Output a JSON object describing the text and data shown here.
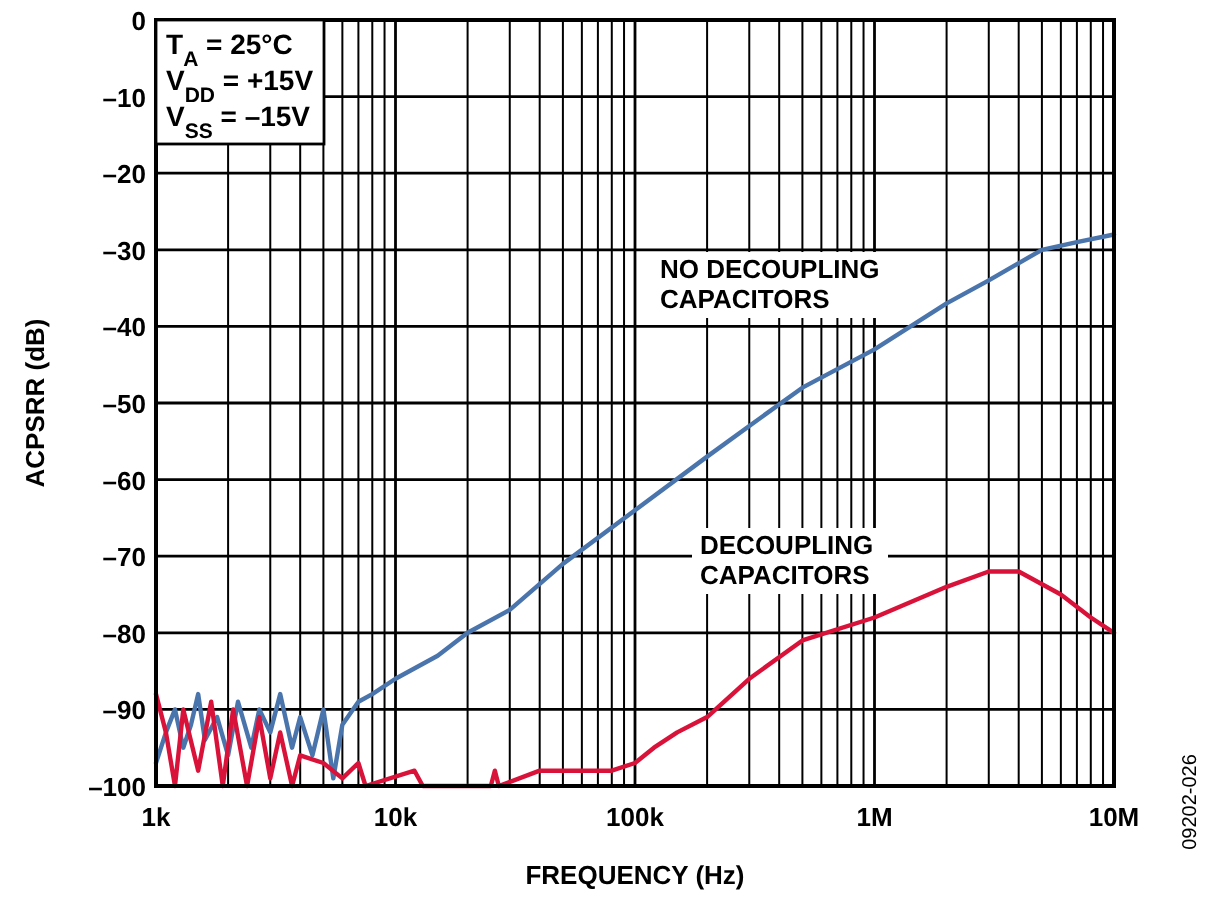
{
  "chart_data": {
    "type": "line",
    "xlabel": "FREQUENCY (Hz)",
    "ylabel": "ACPSRR (dB)",
    "log": "x",
    "grid": true,
    "line_style": "solid",
    "xlim": [
      1000,
      10000000
    ],
    "ylim": [
      -100,
      0
    ],
    "xticks": [
      {
        "value": 1000,
        "label": "1k"
      },
      {
        "value": 10000,
        "label": "10k"
      },
      {
        "value": 100000,
        "label": "100k"
      },
      {
        "value": 1000000,
        "label": "1M"
      },
      {
        "value": 10000000,
        "label": "10M"
      }
    ],
    "yticks": [
      {
        "value": -100,
        "label": "–100"
      },
      {
        "value": -90,
        "label": "–90"
      },
      {
        "value": -80,
        "label": "–80"
      },
      {
        "value": -70,
        "label": "–70"
      },
      {
        "value": -60,
        "label": "–60"
      },
      {
        "value": -50,
        "label": "–50"
      },
      {
        "value": -40,
        "label": "–40"
      },
      {
        "value": -30,
        "label": "–30"
      },
      {
        "value": -20,
        "label": "–20"
      },
      {
        "value": -10,
        "label": "–10"
      },
      0
    ],
    "annotations": [
      "T$_{A}$ = 25°C",
      "V$_{DD}$ = +15V",
      "V$_{SS}$ = –15V",
      "09202-026"
    ],
    "series": [
      {
        "name": "NO DECOUPLING CAPACITORS",
        "color": "#4a74ac",
        "x": [
          1000,
          1100,
          1200,
          1300,
          1400,
          1500,
          1600,
          1800,
          2000,
          2200,
          2500,
          2700,
          3000,
          3300,
          3700,
          4000,
          4500,
          5000,
          5500,
          6000,
          7000,
          8000,
          10000,
          15000,
          20000,
          30000,
          50000,
          100000,
          200000,
          300000,
          500000,
          1000000,
          2000000,
          3000000,
          5000000,
          7000000,
          10000000
        ],
        "values": [
          -97,
          -93,
          -90,
          -95,
          -92,
          -88,
          -94,
          -91,
          -96,
          -89,
          -95,
          -90,
          -93,
          -88,
          -95,
          -91,
          -96,
          -90,
          -99,
          -92,
          -89,
          -88,
          -86,
          -83,
          -80,
          -77,
          -71,
          -64,
          -57,
          -53,
          -48,
          -43,
          -37,
          -34,
          -30,
          -29,
          -28
        ]
      },
      {
        "name": "DECOUPLING CAPACITORS",
        "color": "#d9123a",
        "x": [
          1000,
          1100,
          1200,
          1300,
          1500,
          1700,
          1900,
          2100,
          2400,
          2700,
          3000,
          3300,
          3700,
          4000,
          5000,
          6000,
          7000,
          7500,
          12000,
          13000,
          25000,
          26000,
          27000,
          40000,
          60000,
          80000,
          100000,
          120000,
          150000,
          200000,
          300000,
          500000,
          1000000,
          2000000,
          3000000,
          4000000,
          6000000,
          8000000,
          10000000
        ],
        "values": [
          -88,
          -93,
          -100,
          -90,
          -98,
          -89,
          -100,
          -90,
          -100,
          -91,
          -99,
          -93,
          -100,
          -96,
          -97,
          -99,
          -97,
          -100,
          -98,
          -100,
          -100,
          -98,
          -100,
          -98,
          -98,
          -98,
          -97,
          -95,
          -93,
          -91,
          -86,
          -81,
          -78,
          -74,
          -72,
          -72,
          -75,
          -78,
          -80
        ]
      }
    ]
  }
}
